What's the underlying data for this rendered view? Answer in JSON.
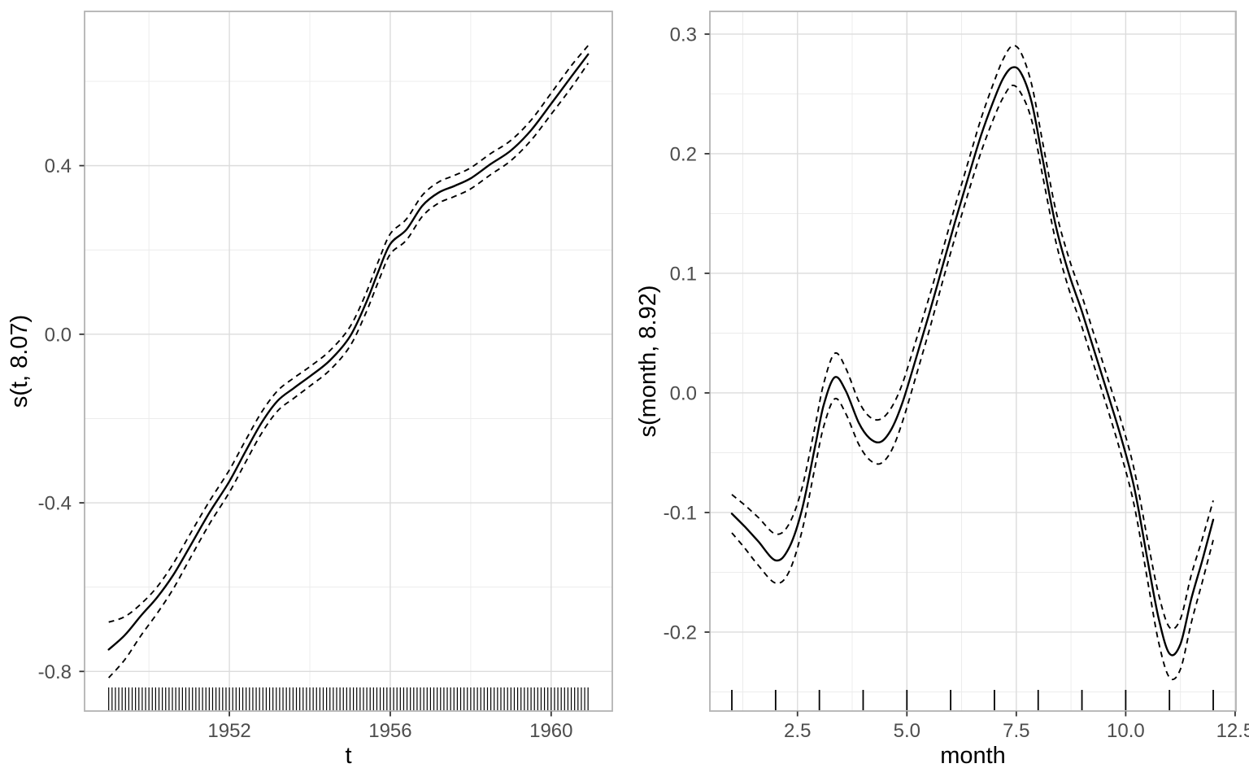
{
  "figure": {
    "background_color": "#ffffff",
    "panel_border_color": "#b3b3b3",
    "grid_major_color": "#dcdcdc",
    "grid_minor_color": "#ececec",
    "line_color": "#000000",
    "tick_label_color": "#4d4d4d",
    "axis_title_color": "#000000"
  },
  "chart_data": [
    {
      "id": "trend-smooth",
      "type": "line",
      "title": "",
      "xlabel": "t",
      "ylabel": "s(t, 8.07)",
      "legend_position": "none",
      "grid": {
        "major": true,
        "minor": true
      },
      "x_range": [
        1948.4,
        1961.52
      ],
      "y_range": [
        -0.894,
        0.766
      ],
      "x_major_ticks": {
        "values": [
          1952,
          1956,
          1960
        ],
        "labels": [
          "1952",
          "1956",
          "1960"
        ]
      },
      "x_minor_ticks": [
        1950,
        1954,
        1958
      ],
      "y_major_ticks": {
        "values": [
          0.4,
          0.0,
          -0.4,
          -0.8
        ],
        "labels": [
          "0.4",
          "0.0",
          "-0.4",
          "-0.8"
        ]
      },
      "y_minor_ticks": [
        0.6,
        0.2,
        -0.2,
        -0.6
      ],
      "x": [
        1949.0,
        1949.4,
        1949.8,
        1950.2,
        1950.6,
        1951.0,
        1951.5,
        1952.0,
        1952.4,
        1952.8,
        1953.2,
        1953.6,
        1954.0,
        1954.5,
        1955.0,
        1955.4,
        1955.7,
        1956.0,
        1956.4,
        1956.8,
        1957.2,
        1957.6,
        1958.0,
        1958.5,
        1959.0,
        1959.5,
        1960.0,
        1960.5,
        1960.92
      ],
      "series": [
        {
          "name": "estimate",
          "line_style": "solid",
          "y": [
            -0.748,
            -0.714,
            -0.668,
            -0.625,
            -0.572,
            -0.507,
            -0.424,
            -0.349,
            -0.278,
            -0.21,
            -0.158,
            -0.128,
            -0.1,
            -0.062,
            -0.005,
            0.075,
            0.148,
            0.214,
            0.248,
            0.305,
            0.336,
            0.352,
            0.37,
            0.404,
            0.436,
            0.484,
            0.547,
            0.611,
            0.664
          ]
        },
        {
          "name": "ci_lower",
          "line_style": "dashed",
          "y": [
            -0.815,
            -0.772,
            -0.715,
            -0.663,
            -0.605,
            -0.536,
            -0.451,
            -0.375,
            -0.304,
            -0.235,
            -0.182,
            -0.152,
            -0.123,
            -0.085,
            -0.028,
            0.052,
            0.124,
            0.19,
            0.223,
            0.28,
            0.311,
            0.327,
            0.345,
            0.379,
            0.412,
            0.46,
            0.522,
            0.585,
            0.643
          ]
        },
        {
          "name": "ci_upper",
          "line_style": "dashed",
          "y": [
            -0.683,
            -0.67,
            -0.64,
            -0.6,
            -0.545,
            -0.478,
            -0.397,
            -0.322,
            -0.252,
            -0.185,
            -0.134,
            -0.104,
            -0.077,
            -0.039,
            0.018,
            0.098,
            0.172,
            0.238,
            0.273,
            0.33,
            0.361,
            0.377,
            0.395,
            0.429,
            0.46,
            0.508,
            0.572,
            0.637,
            0.685
          ]
        }
      ],
      "rug": {
        "from": 1949.0,
        "to": 1960.9167,
        "count": 144
      }
    },
    {
      "id": "seasonal-smooth",
      "type": "line",
      "title": "",
      "xlabel": "month",
      "ylabel": "s(month, 8.92)",
      "legend_position": "none",
      "grid": {
        "major": true,
        "minor": true
      },
      "x_range": [
        0.498,
        12.52
      ],
      "y_range": [
        -0.266,
        0.319
      ],
      "x_major_ticks": {
        "values": [
          2.5,
          5.0,
          7.5,
          10.0,
          12.5
        ],
        "labels": [
          "2.5",
          "5.0",
          "7.5",
          "10.0",
          "12.5"
        ]
      },
      "x_minor_ticks": [
        1.25,
        3.75,
        6.25,
        8.75,
        11.25
      ],
      "y_major_ticks": {
        "values": [
          0.3,
          0.2,
          0.1,
          0.0,
          -0.1,
          -0.2
        ],
        "labels": [
          "0.3",
          "0.2",
          "0.1",
          "0.0",
          "-0.1",
          "-0.2"
        ]
      },
      "y_minor_ticks": [
        0.25,
        0.15,
        0.05,
        -0.05,
        -0.15,
        -0.25
      ],
      "x": [
        1.0,
        1.3,
        1.6,
        2.0,
        2.3,
        2.6,
        2.9,
        3.1,
        3.35,
        3.6,
        3.9,
        4.15,
        4.4,
        4.65,
        4.9,
        5.2,
        5.5,
        5.8,
        6.1,
        6.4,
        6.7,
        7.0,
        7.2,
        7.4,
        7.6,
        7.85,
        8.1,
        8.4,
        8.7,
        9.0,
        9.3,
        9.6,
        9.9,
        10.2,
        10.5,
        10.75,
        11.0,
        11.25,
        11.5,
        11.75,
        12.0
      ],
      "series": [
        {
          "name": "estimate",
          "line_style": "solid",
          "y": [
            -0.101,
            -0.112,
            -0.124,
            -0.14,
            -0.13,
            -0.098,
            -0.045,
            -0.01,
            0.013,
            0.002,
            -0.025,
            -0.038,
            -0.041,
            -0.03,
            -0.008,
            0.028,
            0.065,
            0.104,
            0.143,
            0.18,
            0.216,
            0.246,
            0.263,
            0.272,
            0.268,
            0.243,
            0.196,
            0.14,
            0.1,
            0.068,
            0.033,
            -0.002,
            -0.038,
            -0.08,
            -0.14,
            -0.188,
            -0.218,
            -0.21,
            -0.172,
            -0.14,
            -0.106
          ]
        },
        {
          "name": "ci_lower",
          "line_style": "dashed",
          "y": [
            -0.117,
            -0.13,
            -0.144,
            -0.159,
            -0.15,
            -0.116,
            -0.062,
            -0.028,
            -0.005,
            -0.017,
            -0.043,
            -0.056,
            -0.059,
            -0.048,
            -0.024,
            0.013,
            0.051,
            0.091,
            0.13,
            0.167,
            0.202,
            0.231,
            0.247,
            0.257,
            0.251,
            0.228,
            0.182,
            0.127,
            0.087,
            0.055,
            0.02,
            -0.015,
            -0.052,
            -0.095,
            -0.157,
            -0.208,
            -0.238,
            -0.231,
            -0.192,
            -0.158,
            -0.123
          ]
        },
        {
          "name": "ci_upper",
          "line_style": "dashed",
          "y": [
            -0.085,
            -0.094,
            -0.104,
            -0.118,
            -0.11,
            -0.08,
            -0.028,
            0.008,
            0.033,
            0.021,
            -0.007,
            -0.02,
            -0.022,
            -0.012,
            0.008,
            0.043,
            0.079,
            0.117,
            0.156,
            0.193,
            0.23,
            0.261,
            0.279,
            0.29,
            0.285,
            0.258,
            0.21,
            0.153,
            0.113,
            0.081,
            0.046,
            0.011,
            -0.024,
            -0.065,
            -0.123,
            -0.168,
            -0.196,
            -0.189,
            -0.152,
            -0.122,
            -0.09
          ]
        }
      ],
      "rug": {
        "from": 1,
        "to": 12,
        "count": 12
      }
    }
  ]
}
